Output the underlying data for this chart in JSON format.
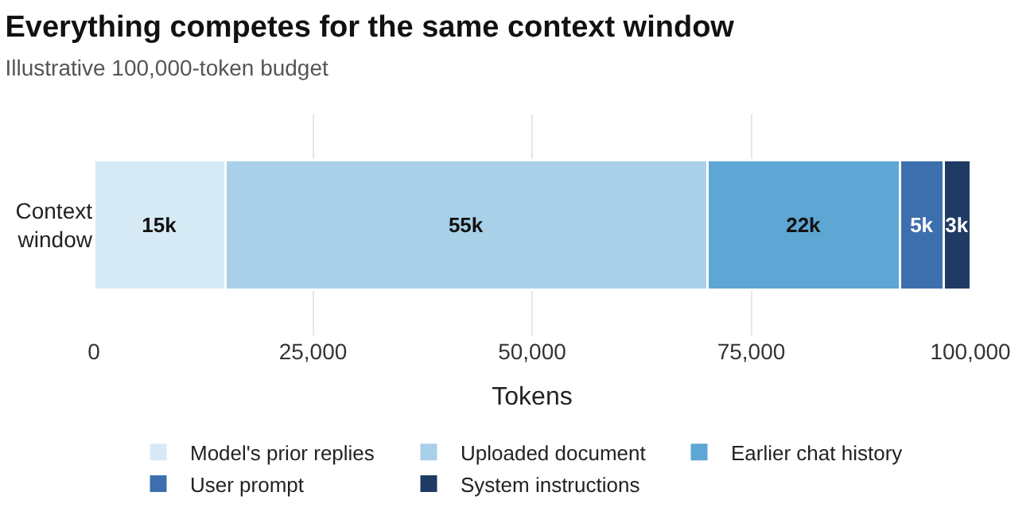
{
  "chart_data": {
    "type": "bar",
    "orientation": "horizontal",
    "stacked": true,
    "title": "Everything competes for the same context window",
    "subtitle": "Illustrative 100,000-token budget",
    "xlabel": "Tokens",
    "categories": [
      "Context\nwindow"
    ],
    "series": [
      {
        "name": "Model's prior replies",
        "color": "#d6eaf6",
        "values": [
          15000
        ],
        "value_labels": [
          "15k"
        ]
      },
      {
        "name": "Uploaded document",
        "color": "#a8d0e8",
        "values": [
          55000
        ],
        "value_labels": [
          "55k"
        ]
      },
      {
        "name": "Earlier chat history",
        "color": "#5ea6d3",
        "values": [
          22000
        ],
        "value_labels": [
          "22k"
        ]
      },
      {
        "name": "User prompt",
        "color": "#3d6fae",
        "values": [
          5000
        ],
        "value_labels": [
          "5k"
        ]
      },
      {
        "name": "System instructions",
        "color": "#1f3a63",
        "values": [
          3000
        ],
        "value_labels": [
          "3k"
        ]
      }
    ],
    "xlim": [
      0,
      100000
    ],
    "xticks": [
      {
        "value": 0,
        "label": "0"
      },
      {
        "value": 25000,
        "label": "25,000"
      },
      {
        "value": 50000,
        "label": "50,000"
      },
      {
        "value": 75000,
        "label": "75,000"
      },
      {
        "value": 100000,
        "label": "100,000"
      }
    ],
    "grid": "x",
    "legend": "bottom"
  }
}
